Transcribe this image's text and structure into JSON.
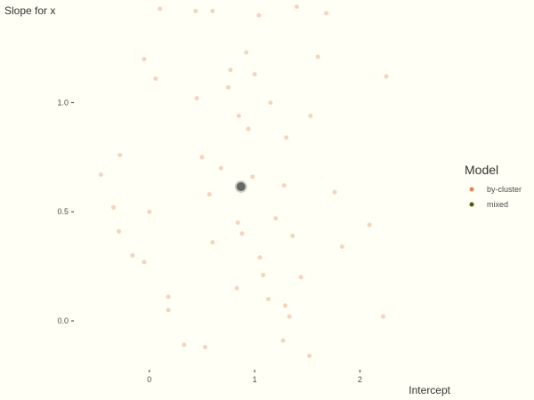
{
  "chart_data": {
    "type": "scatter",
    "xlabel": "Intercept",
    "ylabel": "Slope for x",
    "xlim": [
      -0.7,
      2.85
    ],
    "ylim": [
      -0.22,
      1.45
    ],
    "x_ticks": [
      0,
      1,
      2
    ],
    "x_tick_labels": [
      "0",
      "1",
      "2"
    ],
    "y_ticks": [
      0.0,
      0.5,
      1.0
    ],
    "y_tick_labels": [
      "0.0",
      "0.5",
      "1.0"
    ],
    "grid": false,
    "legend": {
      "title": "Model",
      "placement": "right",
      "entries": [
        {
          "name": "by-cluster",
          "color": "#e8825a"
        },
        {
          "name": "mixed",
          "color": "#4a5d0f"
        }
      ]
    },
    "series": [
      {
        "name": "by-cluster",
        "color": "#e8825a",
        "points": [
          [
            0.1,
            1.43
          ],
          [
            0.44,
            1.42
          ],
          [
            0.6,
            1.42
          ],
          [
            1.04,
            1.4
          ],
          [
            1.68,
            1.41
          ],
          [
            1.4,
            1.44
          ],
          [
            0.92,
            1.23
          ],
          [
            1.6,
            1.21
          ],
          [
            -0.05,
            1.2
          ],
          [
            0.77,
            1.15
          ],
          [
            1.0,
            1.13
          ],
          [
            2.25,
            1.12
          ],
          [
            0.06,
            1.11
          ],
          [
            0.75,
            1.07
          ],
          [
            0.45,
            1.02
          ],
          [
            1.15,
            1.0
          ],
          [
            1.53,
            0.94
          ],
          [
            0.85,
            0.94
          ],
          [
            0.94,
            0.88
          ],
          [
            1.3,
            0.84
          ],
          [
            -0.28,
            0.76
          ],
          [
            0.5,
            0.75
          ],
          [
            0.68,
            0.7
          ],
          [
            -0.46,
            0.67
          ],
          [
            0.98,
            0.66
          ],
          [
            1.28,
            0.62
          ],
          [
            1.76,
            0.59
          ],
          [
            0.57,
            0.58
          ],
          [
            -0.34,
            0.52
          ],
          [
            0.0,
            0.5
          ],
          [
            1.2,
            0.47
          ],
          [
            0.84,
            0.45
          ],
          [
            2.09,
            0.44
          ],
          [
            -0.29,
            0.41
          ],
          [
            0.88,
            0.4
          ],
          [
            1.36,
            0.39
          ],
          [
            0.6,
            0.36
          ],
          [
            1.83,
            0.34
          ],
          [
            -0.16,
            0.3
          ],
          [
            1.05,
            0.29
          ],
          [
            -0.05,
            0.27
          ],
          [
            1.08,
            0.21
          ],
          [
            1.44,
            0.2
          ],
          [
            0.83,
            0.15
          ],
          [
            0.18,
            0.11
          ],
          [
            1.13,
            0.1
          ],
          [
            1.29,
            0.07
          ],
          [
            0.18,
            0.05
          ],
          [
            1.33,
            0.02
          ],
          [
            2.22,
            0.02
          ],
          [
            0.33,
            -0.11
          ],
          [
            1.27,
            -0.09
          ],
          [
            0.53,
            -0.12
          ],
          [
            1.52,
            -0.16
          ]
        ]
      },
      {
        "name": "mixed",
        "color": "#4a5d0f",
        "points": [
          [
            0.87,
            0.615
          ]
        ]
      }
    ]
  }
}
